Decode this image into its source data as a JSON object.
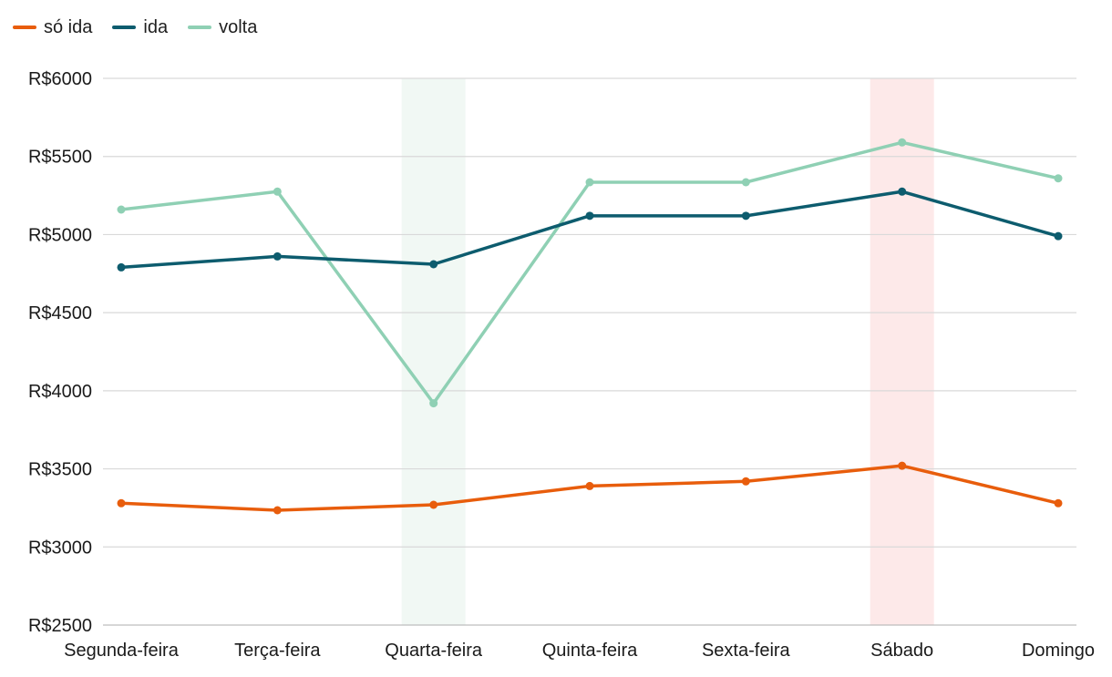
{
  "chart_data": {
    "type": "line",
    "categories": [
      "Segunda-feira",
      "Terça-feira",
      "Quarta-feira",
      "Quinta-feira",
      "Sexta-feira",
      "Sábado",
      "Domingo"
    ],
    "series": [
      {
        "name": "só ida",
        "color": "#e85d0c",
        "values": [
          3280,
          3235,
          3270,
          3390,
          3420,
          3520,
          3280
        ]
      },
      {
        "name": "ida",
        "color": "#0d5c6e",
        "values": [
          4790,
          4860,
          4810,
          5120,
          5120,
          5275,
          4990
        ]
      },
      {
        "name": "volta",
        "color": "#8fd0b4",
        "values": [
          5160,
          5275,
          3920,
          5335,
          5335,
          5590,
          5360
        ]
      }
    ],
    "ylim": [
      2500,
      6000
    ],
    "yticks": [
      2500,
      3000,
      3500,
      4000,
      4500,
      5000,
      5500,
      6000
    ],
    "ytick_labels": [
      "R$2500",
      "R$3000",
      "R$3500",
      "R$4000",
      "R$4500",
      "R$5000",
      "R$5500",
      "R$6000"
    ],
    "highlights": [
      {
        "category": "Quarta-feira",
        "color": "#f1f8f4"
      },
      {
        "category": "Sábado",
        "color": "#fde9e9"
      }
    ],
    "grid": true,
    "legend": "top-left"
  }
}
